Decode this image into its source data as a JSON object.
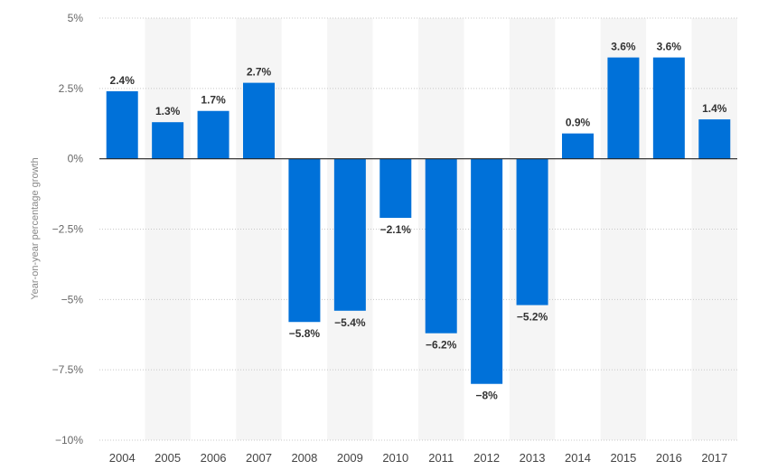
{
  "chart_data": {
    "type": "bar",
    "title": "",
    "xlabel": "",
    "ylabel": "Year-on-year percentage growth",
    "categories": [
      "2004",
      "2005",
      "2006",
      "2007",
      "2008",
      "2009",
      "2010",
      "2011",
      "2012",
      "2013",
      "2014",
      "2015",
      "2016",
      "2017"
    ],
    "values": [
      2.4,
      1.3,
      1.7,
      2.7,
      -5.8,
      -5.4,
      -2.1,
      -6.2,
      -8,
      -5.2,
      0.9,
      3.6,
      3.6,
      1.4
    ],
    "value_labels": [
      "2.4%",
      "1.3%",
      "1.7%",
      "2.7%",
      "−5.8%",
      "−5.4%",
      "−2.1%",
      "−6.2%",
      "−8%",
      "−5.2%",
      "0.9%",
      "3.6%",
      "3.6%",
      "1.4%"
    ],
    "ylim": [
      -10,
      5
    ],
    "yticks": [
      5,
      2.5,
      0,
      -2.5,
      -5,
      -7.5,
      -10
    ],
    "ytick_labels": [
      "5%",
      "2.5%",
      "0%",
      "−2.5%",
      "−5%",
      "−7.5%",
      "−10%"
    ],
    "grid": true,
    "legend": "none",
    "colors": {
      "bar": "#0071d9",
      "band": "#f5f5f5",
      "grid": "#c8c8c8",
      "zero_line": "#222222"
    }
  }
}
